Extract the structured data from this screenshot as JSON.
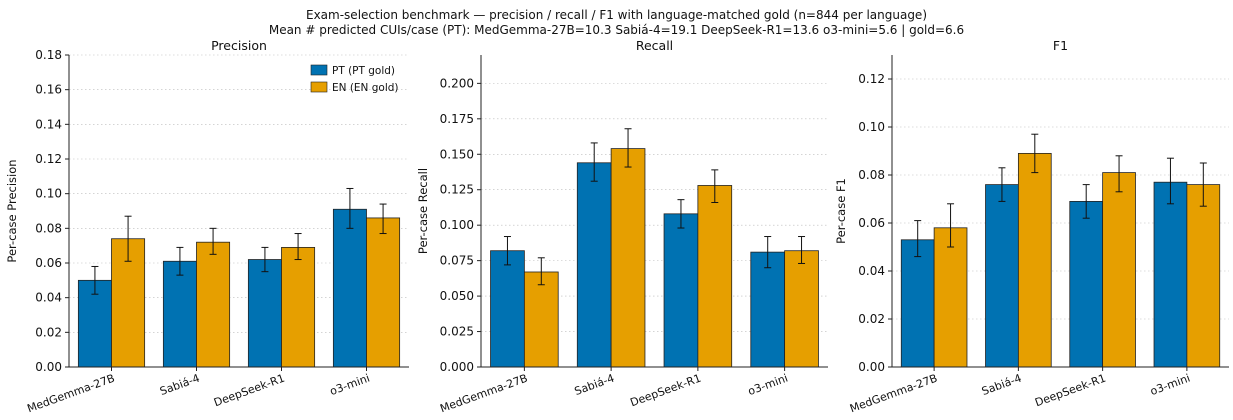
{
  "figure": {
    "title_line1": "Exam-selection benchmark — precision / recall / F1 with language-matched gold (n=844 per language)",
    "title_line2": "Mean # predicted CUIs/case (PT):  MedGemma-27B=10.3   Sabiá-4=19.1   DeepSeek-R1=13.6   o3-mini=5.6   |  gold=6.6"
  },
  "colors": {
    "PT": "#0072b2",
    "EN": "#e69f00"
  },
  "chart_data": [
    {
      "type": "bar",
      "title": "Precision",
      "ylabel": "Per-case Precision",
      "categories": [
        "MedGemma-27B",
        "Sabiá-4",
        "DeepSeek-R1",
        "o3-mini"
      ],
      "ylim": [
        0,
        0.18
      ],
      "yticks": [
        0.0,
        0.02,
        0.04,
        0.06,
        0.08,
        0.1,
        0.12,
        0.14,
        0.16,
        0.18
      ],
      "ytick_labels": [
        "0.00",
        "0.02",
        "0.04",
        "0.06",
        "0.08",
        "0.10",
        "0.12",
        "0.14",
        "0.16",
        "0.18"
      ],
      "legend": {
        "placement": "top-right",
        "entries": [
          "PT (PT gold)",
          "EN (EN gold)"
        ]
      },
      "series": [
        {
          "name": "PT (PT gold)",
          "key": "PT",
          "values": [
            0.05,
            0.061,
            0.062,
            0.091
          ],
          "err_low": [
            0.042,
            0.053,
            0.055,
            0.08
          ],
          "err_high": [
            0.058,
            0.069,
            0.069,
            0.103
          ]
        },
        {
          "name": "EN (EN gold)",
          "key": "EN",
          "values": [
            0.074,
            0.072,
            0.069,
            0.086
          ],
          "err_low": [
            0.061,
            0.065,
            0.062,
            0.077
          ],
          "err_high": [
            0.087,
            0.08,
            0.077,
            0.094
          ]
        }
      ],
      "grid": "y"
    },
    {
      "type": "bar",
      "title": "Recall",
      "ylabel": "Per-case Recall",
      "categories": [
        "MedGemma-27B",
        "Sabiá-4",
        "DeepSeek-R1",
        "o3-mini"
      ],
      "ylim": [
        0,
        0.22
      ],
      "yticks": [
        0.0,
        0.025,
        0.05,
        0.075,
        0.1,
        0.125,
        0.15,
        0.175,
        0.2
      ],
      "ytick_labels": [
        "0.000",
        "0.025",
        "0.050",
        "0.075",
        "0.100",
        "0.125",
        "0.150",
        "0.175",
        "0.200"
      ],
      "series": [
        {
          "name": "PT (PT gold)",
          "key": "PT",
          "values": [
            0.082,
            0.144,
            0.108,
            0.081
          ],
          "err_low": [
            0.072,
            0.131,
            0.098,
            0.07
          ],
          "err_high": [
            0.092,
            0.158,
            0.118,
            0.092
          ]
        },
        {
          "name": "EN (EN gold)",
          "key": "EN",
          "values": [
            0.067,
            0.154,
            0.128,
            0.082
          ],
          "err_low": [
            0.058,
            0.141,
            0.116,
            0.073
          ],
          "err_high": [
            0.077,
            0.168,
            0.139,
            0.092
          ]
        }
      ],
      "grid": "y"
    },
    {
      "type": "bar",
      "title": "F1",
      "ylabel": "Per-case F1",
      "categories": [
        "MedGemma-27B",
        "Sabiá-4",
        "DeepSeek-R1",
        "o3-mini"
      ],
      "ylim": [
        0,
        0.13
      ],
      "yticks": [
        0.0,
        0.02,
        0.04,
        0.06,
        0.08,
        0.1,
        0.12
      ],
      "ytick_labels": [
        "0.00",
        "0.02",
        "0.04",
        "0.06",
        "0.08",
        "0.10",
        "0.12"
      ],
      "series": [
        {
          "name": "PT (PT gold)",
          "key": "PT",
          "values": [
            0.053,
            0.076,
            0.069,
            0.077
          ],
          "err_low": [
            0.046,
            0.069,
            0.062,
            0.068
          ],
          "err_high": [
            0.061,
            0.083,
            0.076,
            0.087
          ]
        },
        {
          "name": "EN (EN gold)",
          "key": "EN",
          "values": [
            0.058,
            0.089,
            0.081,
            0.076
          ],
          "err_low": [
            0.05,
            0.081,
            0.073,
            0.067
          ],
          "err_high": [
            0.068,
            0.097,
            0.088,
            0.085
          ]
        }
      ],
      "grid": "y"
    }
  ]
}
